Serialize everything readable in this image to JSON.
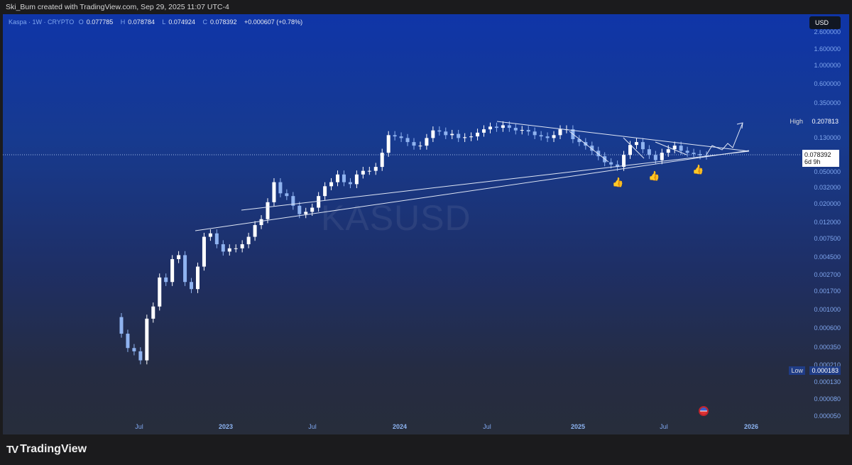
{
  "header": {
    "attribution": "Ski_Bum created with TradingView.com, Sep 29, 2025 11:07 UTC-4"
  },
  "legend": {
    "symbol": "Kaspa · 1W · CRYPTO",
    "o_label": "O",
    "o": "0.077785",
    "h_label": "H",
    "h": "0.078784",
    "l_label": "L",
    "l": "0.074924",
    "c_label": "C",
    "c": "0.078392",
    "change": "+0.000607 (+0.78%)"
  },
  "currency_button": "USD",
  "watermark": "KASUSD",
  "price_scale": {
    "labels": [
      "2.600000",
      "1.600000",
      "1.000000",
      "0.600000",
      "0.350000",
      "0.130000",
      "0.050000",
      "0.032000",
      "0.020000",
      "0.012000",
      "0.007500",
      "0.004500",
      "0.002700",
      "0.001700",
      "0.001000",
      "0.000600",
      "0.000350",
      "0.000210",
      "0.000130",
      "0.000080",
      "0.000050"
    ],
    "high_label": "High",
    "high_value": "0.207813",
    "low_label": "Low",
    "low_value": "0.000183",
    "last_price": "0.078392",
    "countdown": "6d 9h"
  },
  "time_scale": [
    {
      "label": "Jul",
      "year": false
    },
    {
      "label": "2023",
      "year": true
    },
    {
      "label": "Jul",
      "year": false
    },
    {
      "label": "2024",
      "year": true
    },
    {
      "label": "Jul",
      "year": false
    },
    {
      "label": "2025",
      "year": true
    },
    {
      "label": "Jul",
      "year": false
    },
    {
      "label": "2026",
      "year": true
    }
  ],
  "footer": {
    "brand": "TradingView"
  },
  "colors": {
    "up": "#ffffff",
    "down": "#8fb3f0",
    "drawing": "#dfe6f5"
  },
  "chart_data": {
    "type": "candlestick",
    "scale": "log",
    "x_start": "2022-05-02",
    "x_step_days": 14,
    "closes": [
      0.00051,
      0.00034,
      0.00031,
      0.00024,
      0.00078,
      0.0011,
      0.0025,
      0.0022,
      0.0042,
      0.0047,
      0.0022,
      0.0018,
      0.0034,
      0.0079,
      0.0087,
      0.0064,
      0.0052,
      0.0057,
      0.0057,
      0.0064,
      0.0079,
      0.011,
      0.013,
      0.021,
      0.037,
      0.027,
      0.025,
      0.019,
      0.015,
      0.016,
      0.018,
      0.025,
      0.033,
      0.037,
      0.046,
      0.037,
      0.035,
      0.046,
      0.051,
      0.051,
      0.057,
      0.085,
      0.14,
      0.135,
      0.129,
      0.115,
      0.104,
      0.104,
      0.129,
      0.16,
      0.155,
      0.14,
      0.145,
      0.129,
      0.132,
      0.135,
      0.15,
      0.165,
      0.178,
      0.172,
      0.185,
      0.172,
      0.16,
      0.162,
      0.155,
      0.14,
      0.135,
      0.129,
      0.14,
      0.165,
      0.165,
      0.125,
      0.115,
      0.104,
      0.09,
      0.077,
      0.065,
      0.061,
      0.057,
      0.08,
      0.106,
      0.115,
      0.094,
      0.08,
      0.069,
      0.085,
      0.094,
      0.104,
      0.09,
      0.085,
      0.082,
      0.079,
      0.0784
    ],
    "ylim": [
      4e-05,
      2.6
    ]
  }
}
